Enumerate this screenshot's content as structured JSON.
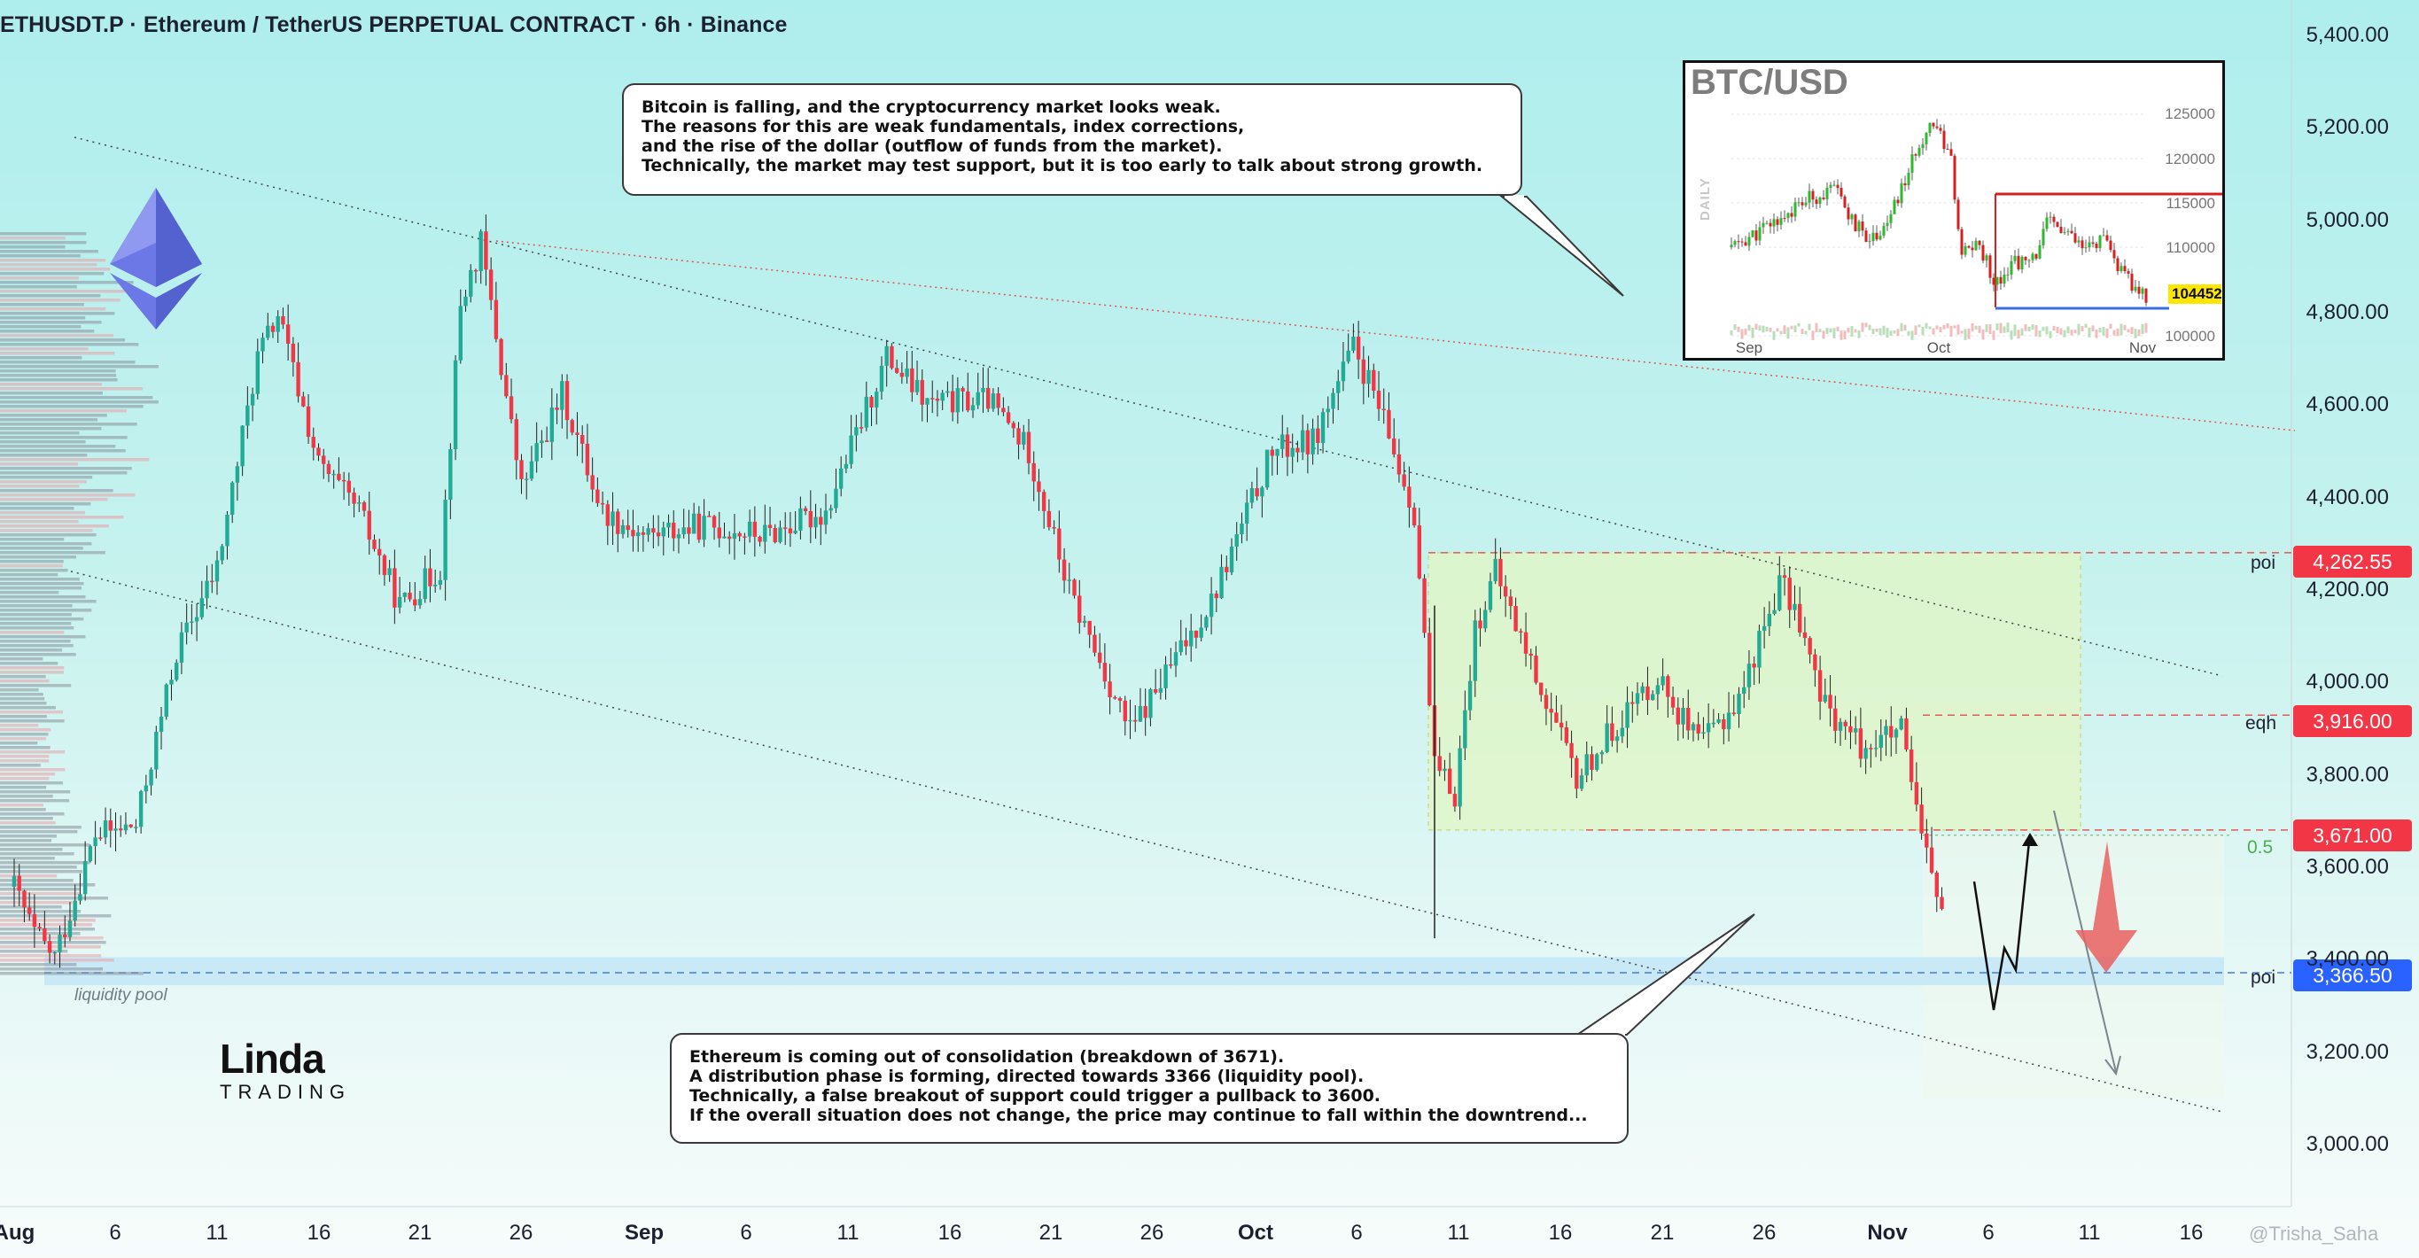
{
  "header": {
    "title": "ETHUSDT.P · Ethereum / TetherUS PERPETUAL CONTRACT · 6h · Binance"
  },
  "colors": {
    "bull": "#22ab94",
    "bear": "#f23645",
    "level_tag": "#f23645",
    "poi_blue_tag": "#2962ff",
    "zone": "#e1f5c4"
  },
  "callouts": {
    "top": [
      "Bitcoin is falling, and the cryptocurrency market looks weak.",
      "The reasons for this are weak fundamentals, index corrections,",
      "and the rise of the dollar (outflow of funds from the market).",
      "Technically, the market may test support, but it is too early to talk about strong growth."
    ],
    "bottom": [
      "Ethereum is coming out of consolidation (breakdown of 3671).",
      "A distribution phase is forming, directed towards 3366 (liquidity pool).",
      "Technically, a false breakout of support could trigger a pullback to 3600.",
      "If the overall situation does not change, the price may continue to fall within the downtrend..."
    ]
  },
  "annotations": {
    "liquidity_pool": "liquidity pool",
    "fib_label": "0.5"
  },
  "levels": [
    {
      "label": "poi",
      "value": "4,262.55",
      "kind": "red"
    },
    {
      "label": "eqh",
      "value": "3,916.00",
      "kind": "red"
    },
    {
      "label": "",
      "value": "3,671.00",
      "kind": "red"
    },
    {
      "label": "poi",
      "value": "3,366.50",
      "kind": "blue"
    }
  ],
  "logo": {
    "main": "Linda",
    "sub": "TRADING"
  },
  "watermark": "@Trisha_Saha",
  "inset": {
    "title": "BTC/USD",
    "daily": "DAILY",
    "price": "104452",
    "yticks": [
      "125000",
      "120000",
      "115000",
      "110000",
      "100000"
    ],
    "xticks": [
      "Sep",
      "Oct",
      "Nov"
    ]
  },
  "chart_data": {
    "type": "candlestick",
    "title": "ETHUSDT.P · Ethereum / TetherUS PERPETUAL CONTRACT · 6h · Binance",
    "yticks": [
      "5,400.00",
      "5,200.00",
      "5,000.00",
      "4,800.00",
      "4,600.00",
      "4,400.00",
      "4,200.00",
      "4,000.00",
      "3,800.00",
      "3,600.00",
      "3,400.00",
      "3,200.00",
      "3,000.00"
    ],
    "ylim": [
      2900,
      5450
    ],
    "xticks": [
      "Aug",
      "6",
      "11",
      "16",
      "21",
      "26",
      "Sep",
      "6",
      "11",
      "16",
      "21",
      "26",
      "Oct",
      "6",
      "11",
      "16",
      "21",
      "26",
      "Nov",
      "6",
      "11",
      "16"
    ],
    "month_ticks": [
      "Aug",
      "Sep",
      "Oct",
      "Nov"
    ],
    "price_path": [
      {
        "date": "Aug 1",
        "close": 3550
      },
      {
        "date": "Aug 2",
        "close": 3450
      },
      {
        "date": "Aug 3",
        "close": 3400
      },
      {
        "date": "Aug 5",
        "close": 3660
      },
      {
        "date": "Aug 7",
        "close": 3680
      },
      {
        "date": "Aug 9",
        "close": 4050
      },
      {
        "date": "Aug 11",
        "close": 4230
      },
      {
        "date": "Aug 13",
        "close": 4680
      },
      {
        "date": "Aug 14",
        "close": 4770
      },
      {
        "date": "Aug 16",
        "close": 4450
      },
      {
        "date": "Aug 18",
        "close": 4350
      },
      {
        "date": "Aug 20",
        "close": 4150
      },
      {
        "date": "Aug 22",
        "close": 4230
      },
      {
        "date": "Aug 23",
        "close": 4790
      },
      {
        "date": "Aug 24",
        "close": 4920
      },
      {
        "date": "Aug 26",
        "close": 4400
      },
      {
        "date": "Aug 28",
        "close": 4600
      },
      {
        "date": "Aug 30",
        "close": 4350
      },
      {
        "date": "Sep 1",
        "close": 4300
      },
      {
        "date": "Sep 4",
        "close": 4320
      },
      {
        "date": "Sep 7",
        "close": 4300
      },
      {
        "date": "Sep 10",
        "close": 4350
      },
      {
        "date": "Sep 13",
        "close": 4680
      },
      {
        "date": "Sep 15",
        "close": 4580
      },
      {
        "date": "Sep 18",
        "close": 4590
      },
      {
        "date": "Sep 20",
        "close": 4480
      },
      {
        "date": "Sep 22",
        "close": 4180
      },
      {
        "date": "Sep 25",
        "close": 3880
      },
      {
        "date": "Sep 27",
        "close": 4020
      },
      {
        "date": "Sep 29",
        "close": 4160
      },
      {
        "date": "Oct 2",
        "close": 4480
      },
      {
        "date": "Oct 4",
        "close": 4500
      },
      {
        "date": "Oct 6",
        "close": 4700
      },
      {
        "date": "Oct 7",
        "close": 4600
      },
      {
        "date": "Oct 9",
        "close": 4350
      },
      {
        "date": "Oct 10",
        "close": 3800
      },
      {
        "date": "Oct 11",
        "close": 3750
      },
      {
        "date": "Oct 12",
        "close": 4100
      },
      {
        "date": "Oct 13",
        "close": 4220
      },
      {
        "date": "Oct 15",
        "close": 4000
      },
      {
        "date": "Oct 17",
        "close": 3780
      },
      {
        "date": "Oct 19",
        "close": 3900
      },
      {
        "date": "Oct 21",
        "close": 4000
      },
      {
        "date": "Oct 23",
        "close": 3850
      },
      {
        "date": "Oct 25",
        "close": 3950
      },
      {
        "date": "Oct 27",
        "close": 4200
      },
      {
        "date": "Oct 28",
        "close": 4120
      },
      {
        "date": "Oct 29",
        "close": 3950
      },
      {
        "date": "Oct 31",
        "close": 3850
      },
      {
        "date": "Nov 2",
        "close": 3880
      },
      {
        "date": "Nov 3",
        "close": 3650
      },
      {
        "date": "Nov 4",
        "close": 3500
      }
    ],
    "levels": [
      4262.55,
      3916.0,
      3671.0,
      3366.5
    ]
  }
}
